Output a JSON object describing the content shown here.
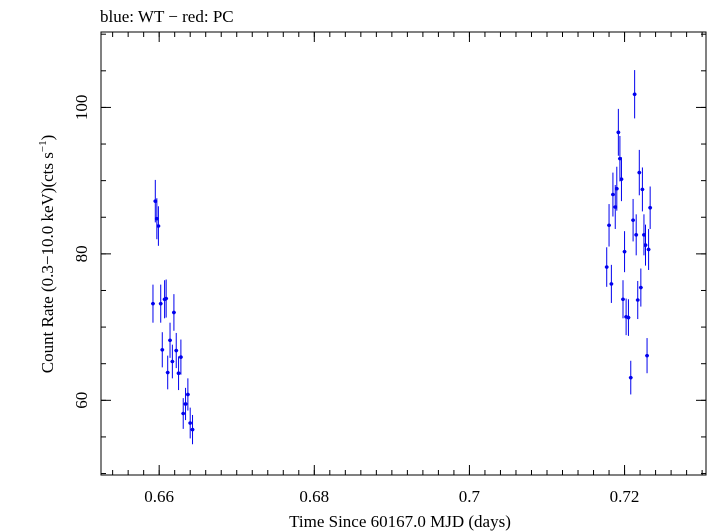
{
  "chart_data": {
    "type": "scatter",
    "title": "blue: WT − red: PC",
    "xlabel": "Time Since 60167.0 MJD (days)",
    "ylabel_main": "Count Rate (0.3−10.0 keV)(cts s",
    "ylabel_sup": "−1",
    "ylabel_close": ")",
    "xlim": [
      0.6525,
      0.7305
    ],
    "ylim": [
      49.8,
      110.3
    ],
    "x_ticks": [
      0.66,
      0.68,
      0.7,
      0.72
    ],
    "x_tick_labels": [
      "0.66",
      "0.68",
      "0.7",
      "0.72"
    ],
    "y_ticks": [
      60,
      80,
      100
    ],
    "y_tick_labels": [
      "60",
      "80",
      "100"
    ],
    "x_minor_step": 0.002,
    "y_minor_step": 5,
    "grid": false,
    "series": [
      {
        "name": "WT",
        "color": "#0000ee",
        "xerr": 0.00025,
        "points": [
          [
            0.6592,
            73.2,
            2.6
          ],
          [
            0.6595,
            87.2,
            2.9
          ],
          [
            0.6597,
            84.8,
            2.8
          ],
          [
            0.6599,
            83.8,
            2.7
          ],
          [
            0.6602,
            73.2,
            2.6
          ],
          [
            0.6604,
            66.9,
            2.4
          ],
          [
            0.6607,
            73.8,
            2.6
          ],
          [
            0.6609,
            73.9,
            2.6
          ],
          [
            0.6611,
            63.8,
            2.3
          ],
          [
            0.6614,
            68.2,
            2.4
          ],
          [
            0.6617,
            65.3,
            2.3
          ],
          [
            0.6619,
            72.0,
            2.5
          ],
          [
            0.6622,
            66.8,
            2.4
          ],
          [
            0.6625,
            63.7,
            2.3
          ],
          [
            0.6628,
            65.9,
            2.4
          ],
          [
            0.6631,
            58.2,
            2.1
          ],
          [
            0.6634,
            59.5,
            2.2
          ],
          [
            0.6637,
            60.8,
            2.2
          ],
          [
            0.664,
            56.9,
            2.1
          ],
          [
            0.6643,
            56.0,
            2.0
          ],
          [
            0.7177,
            78.2,
            2.7
          ],
          [
            0.718,
            83.9,
            2.9
          ],
          [
            0.7183,
            75.9,
            2.6
          ],
          [
            0.7185,
            88.1,
            3.0
          ],
          [
            0.7188,
            86.4,
            3.0
          ],
          [
            0.719,
            88.9,
            3.0
          ],
          [
            0.7192,
            96.6,
            3.2
          ],
          [
            0.7194,
            93.0,
            3.1
          ],
          [
            0.7196,
            90.2,
            3.0
          ],
          [
            0.7198,
            73.8,
            2.6
          ],
          [
            0.72,
            80.3,
            2.8
          ],
          [
            0.7202,
            71.4,
            2.5
          ],
          [
            0.7205,
            71.3,
            2.5
          ],
          [
            0.7208,
            63.1,
            2.3
          ],
          [
            0.7211,
            84.6,
            2.9
          ],
          [
            0.7213,
            101.8,
            3.3
          ],
          [
            0.7215,
            82.6,
            2.8
          ],
          [
            0.7217,
            73.7,
            2.6
          ],
          [
            0.7219,
            91.1,
            3.1
          ],
          [
            0.7221,
            75.4,
            2.6
          ],
          [
            0.7223,
            88.8,
            3.0
          ],
          [
            0.7225,
            82.6,
            2.8
          ],
          [
            0.7227,
            81.2,
            2.8
          ],
          [
            0.7229,
            66.1,
            2.4
          ],
          [
            0.7231,
            80.6,
            2.8
          ],
          [
            0.7233,
            86.3,
            2.9
          ]
        ]
      },
      {
        "name": "PC",
        "color": "#ee0000",
        "xerr": 0.00025,
        "points": []
      }
    ]
  }
}
